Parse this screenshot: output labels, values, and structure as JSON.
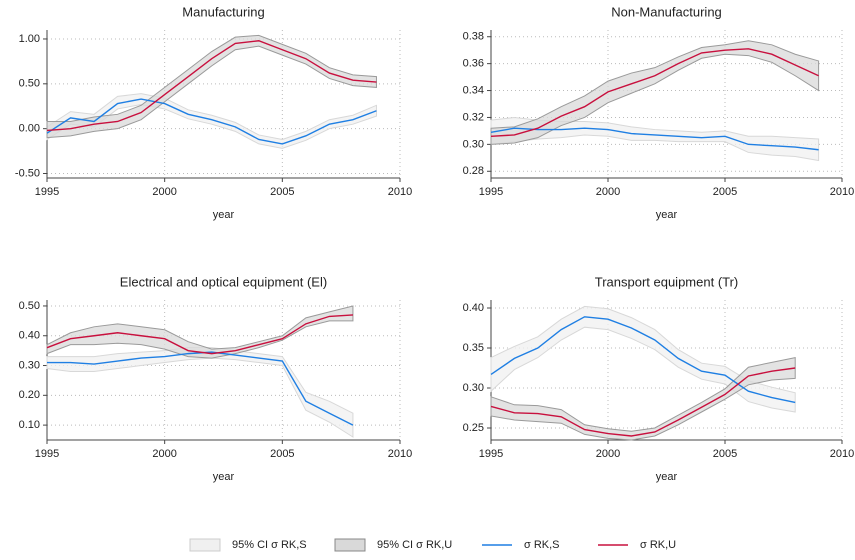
{
  "chart_data": [
    {
      "type": "line",
      "title": "Manufacturing",
      "x_label": "year",
      "x": [
        1995,
        1996,
        1997,
        1998,
        1999,
        2000,
        2001,
        2002,
        2003,
        2004,
        2005,
        2006,
        2007,
        2008,
        2009
      ],
      "xlim": [
        1995,
        2010
      ],
      "xticks": [
        1995,
        2000,
        2005,
        2010
      ],
      "ylim": [
        -0.55,
        1.1
      ],
      "yticks": [
        {
          "value": -0.5,
          "label": "-0.50"
        },
        {
          "value": 0,
          "label": "0.00"
        },
        {
          "value": 0.5,
          "label": "0.50"
        },
        {
          "value": 1,
          "label": "1.00"
        }
      ],
      "grid": true,
      "series": [
        {
          "name": "95% CI σ RK,S",
          "color": "#f0f0f0",
          "lower": [
            -0.12,
            0.05,
            0.02,
            0.22,
            0.27,
            0.22,
            0.11,
            0.05,
            -0.03,
            -0.17,
            -0.22,
            -0.13,
            0.0,
            0.05,
            0.14
          ],
          "upper": [
            0.02,
            0.19,
            0.16,
            0.36,
            0.39,
            0.34,
            0.21,
            0.15,
            0.07,
            -0.07,
            -0.12,
            -0.03,
            0.1,
            0.15,
            0.26
          ]
        },
        {
          "name": "95% CI σ RK,U",
          "color": "#d9d9d9",
          "lower": [
            -0.1,
            -0.08,
            -0.03,
            0.0,
            0.1,
            0.3,
            0.5,
            0.7,
            0.88,
            0.92,
            0.82,
            0.72,
            0.56,
            0.48,
            0.46
          ],
          "upper": [
            0.08,
            0.08,
            0.13,
            0.16,
            0.26,
            0.46,
            0.66,
            0.86,
            1.02,
            1.04,
            0.94,
            0.84,
            0.68,
            0.6,
            0.58
          ]
        },
        {
          "name": "σ RK,S",
          "color": "#1f7fe3",
          "values": [
            -0.05,
            0.12,
            0.08,
            0.28,
            0.33,
            0.28,
            0.16,
            0.1,
            0.02,
            -0.12,
            -0.17,
            -0.08,
            0.05,
            0.1,
            0.2
          ]
        },
        {
          "name": "σ RK,U",
          "color": "#c8103e",
          "values": [
            -0.02,
            0.0,
            0.05,
            0.08,
            0.18,
            0.38,
            0.58,
            0.78,
            0.95,
            0.98,
            0.88,
            0.78,
            0.62,
            0.54,
            0.52
          ]
        }
      ]
    },
    {
      "type": "line",
      "title": "Non-Manufacturing",
      "x_label": "year",
      "x": [
        1995,
        1996,
        1997,
        1998,
        1999,
        2000,
        2001,
        2002,
        2003,
        2004,
        2005,
        2006,
        2007,
        2008,
        2009
      ],
      "xlim": [
        1995,
        2010
      ],
      "xticks": [
        1995,
        2000,
        2005,
        2010
      ],
      "ylim": [
        0.275,
        0.385
      ],
      "yticks": [
        0.28,
        {
          "value": 0.3,
          "label": "0.30"
        },
        0.32,
        0.34,
        0.36,
        0.38
      ],
      "grid": true,
      "series": [
        {
          "name": "95% CI σ RK,S",
          "color": "#f0f0f0",
          "lower": [
            0.3,
            0.302,
            0.304,
            0.305,
            0.307,
            0.306,
            0.303,
            0.303,
            0.302,
            0.302,
            0.302,
            0.294,
            0.292,
            0.291,
            0.288
          ],
          "upper": [
            0.318,
            0.32,
            0.318,
            0.317,
            0.317,
            0.316,
            0.313,
            0.311,
            0.31,
            0.309,
            0.31,
            0.306,
            0.306,
            0.305,
            0.304
          ]
        },
        {
          "name": "95% CI σ RK,U",
          "color": "#d9d9d9",
          "lower": [
            0.3,
            0.301,
            0.305,
            0.314,
            0.32,
            0.331,
            0.338,
            0.345,
            0.355,
            0.364,
            0.367,
            0.366,
            0.361,
            0.351,
            0.34
          ],
          "upper": [
            0.312,
            0.313,
            0.319,
            0.328,
            0.336,
            0.347,
            0.353,
            0.357,
            0.365,
            0.372,
            0.374,
            0.377,
            0.374,
            0.367,
            0.362
          ]
        },
        {
          "name": "σ RK,S",
          "color": "#1f7fe3",
          "values": [
            0.309,
            0.312,
            0.311,
            0.311,
            0.312,
            0.311,
            0.308,
            0.307,
            0.306,
            0.305,
            0.306,
            0.3,
            0.299,
            0.298,
            0.296
          ]
        },
        {
          "name": "σ RK,U",
          "color": "#c8103e",
          "values": [
            0.306,
            0.307,
            0.312,
            0.321,
            0.328,
            0.339,
            0.345,
            0.351,
            0.36,
            0.368,
            0.37,
            0.371,
            0.367,
            0.359,
            0.351
          ]
        }
      ]
    },
    {
      "type": "line",
      "title": "Electrical and optical equipment (El)",
      "x_label": "year",
      "x": [
        1995,
        1996,
        1997,
        1998,
        1999,
        2000,
        2001,
        2002,
        2003,
        2004,
        2005,
        2006,
        2007,
        2008
      ],
      "xlim": [
        1995,
        2010
      ],
      "xticks": [
        1995,
        2000,
        2005,
        2010
      ],
      "ylim": [
        0.05,
        0.52
      ],
      "yticks": [
        {
          "value": 0.1,
          "label": "0.10"
        },
        {
          "value": 0.2,
          "label": "0.20"
        },
        {
          "value": 0.3,
          "label": "0.30"
        },
        {
          "value": 0.4,
          "label": "0.40"
        },
        {
          "value": 0.5,
          "label": "0.50"
        }
      ],
      "grid": true,
      "series": [
        {
          "name": "95% CI σ RK,S",
          "color": "#f0f0f0",
          "lower": [
            0.29,
            0.28,
            0.28,
            0.29,
            0.3,
            0.31,
            0.32,
            0.325,
            0.32,
            0.31,
            0.3,
            0.15,
            0.11,
            0.06
          ],
          "upper": [
            0.33,
            0.33,
            0.33,
            0.34,
            0.345,
            0.35,
            0.36,
            0.36,
            0.35,
            0.34,
            0.33,
            0.21,
            0.18,
            0.14
          ]
        },
        {
          "name": "95% CI σ RK,U",
          "color": "#d9d9d9",
          "lower": [
            0.34,
            0.37,
            0.37,
            0.375,
            0.37,
            0.355,
            0.33,
            0.325,
            0.34,
            0.36,
            0.385,
            0.43,
            0.45,
            0.45
          ],
          "upper": [
            0.37,
            0.41,
            0.43,
            0.44,
            0.43,
            0.42,
            0.38,
            0.355,
            0.36,
            0.38,
            0.4,
            0.46,
            0.48,
            0.5
          ]
        },
        {
          "name": "σ RK,S",
          "color": "#1f7fe3",
          "values": [
            0.31,
            0.31,
            0.305,
            0.315,
            0.325,
            0.33,
            0.34,
            0.345,
            0.335,
            0.325,
            0.315,
            0.18,
            0.14,
            0.1
          ]
        },
        {
          "name": "σ RK,U",
          "color": "#c8103e",
          "values": [
            0.36,
            0.39,
            0.4,
            0.41,
            0.4,
            0.39,
            0.35,
            0.34,
            0.35,
            0.37,
            0.39,
            0.44,
            0.465,
            0.47
          ]
        }
      ]
    },
    {
      "type": "line",
      "title": "Transport equipment (Tr)",
      "x_label": "year",
      "x": [
        1995,
        1996,
        1997,
        1998,
        1999,
        2000,
        2001,
        2002,
        2003,
        2004,
        2005,
        2006,
        2007,
        2008
      ],
      "xlim": [
        1995,
        2010
      ],
      "xticks": [
        1995,
        2000,
        2005,
        2010
      ],
      "ylim": [
        0.235,
        0.41
      ],
      "yticks": [
        0.25,
        {
          "value": 0.3,
          "label": "0.30"
        },
        0.35,
        {
          "value": 0.4,
          "label": "0.40"
        }
      ],
      "grid": true,
      "series": [
        {
          "name": "95% CI σ RK,S",
          "color": "#f0f0f0",
          "lower": [
            0.296,
            0.323,
            0.338,
            0.36,
            0.376,
            0.373,
            0.362,
            0.348,
            0.326,
            0.311,
            0.305,
            0.283,
            0.275,
            0.27
          ],
          "upper": [
            0.338,
            0.352,
            0.364,
            0.386,
            0.402,
            0.399,
            0.388,
            0.373,
            0.348,
            0.331,
            0.327,
            0.309,
            0.301,
            0.294
          ]
        },
        {
          "name": "95% CI σ RK,U",
          "color": "#d9d9d9",
          "lower": [
            0.265,
            0.26,
            0.258,
            0.256,
            0.242,
            0.237,
            0.235,
            0.24,
            0.254,
            0.27,
            0.286,
            0.304,
            0.31,
            0.312
          ],
          "upper": [
            0.289,
            0.279,
            0.278,
            0.273,
            0.254,
            0.249,
            0.246,
            0.25,
            0.266,
            0.282,
            0.299,
            0.326,
            0.332,
            0.338
          ]
        },
        {
          "name": "σ RK,S",
          "color": "#1f7fe3",
          "values": [
            0.317,
            0.337,
            0.35,
            0.373,
            0.389,
            0.386,
            0.375,
            0.36,
            0.337,
            0.321,
            0.316,
            0.296,
            0.288,
            0.282
          ]
        },
        {
          "name": "σ RK,U",
          "color": "#c8103e",
          "values": [
            0.277,
            0.269,
            0.268,
            0.264,
            0.248,
            0.243,
            0.24,
            0.245,
            0.26,
            0.276,
            0.292,
            0.315,
            0.321,
            0.325
          ]
        }
      ]
    }
  ]
}
